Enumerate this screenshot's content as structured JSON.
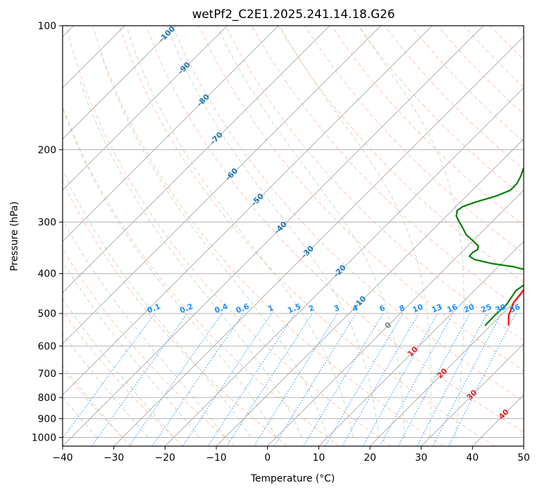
{
  "chart_data": {
    "type": "skew-t",
    "title": "wetPf2_C2E1.2025.241.14.18.G26",
    "xlabel": "Temperature (°C)",
    "ylabel": "Pressure (hPa)",
    "xlim": [
      -40,
      50
    ],
    "ylim": [
      1050,
      100
    ],
    "x_ticks": [
      -40,
      -30,
      -20,
      -10,
      0,
      10,
      20,
      30,
      40,
      50
    ],
    "y_ticks": [
      100,
      200,
      300,
      400,
      500,
      600,
      700,
      800,
      900,
      1000
    ],
    "grid": true,
    "colors": {
      "temperature": "#ff0000",
      "dewpoint": "#008000",
      "isotherm": "#b0b0b0",
      "dry_adiabat": "#ffa07a",
      "moist_adiabat": "#8fbc8f",
      "mixing_ratio": "#1e90ff",
      "isotherm_label": "#1f77b4",
      "mixing_label": "#1e90ff",
      "temp_label": "#d62728",
      "zero_label": "#808080"
    },
    "series": [
      {
        "name": "Temperature",
        "points": [
          [
            23.5,
            535
          ],
          [
            21.5,
            505
          ],
          [
            20,
            470
          ],
          [
            19.5,
            440
          ],
          [
            19.5,
            415
          ],
          [
            20,
            402
          ],
          [
            21.5,
            393
          ],
          [
            23,
            382
          ],
          [
            22.6,
            370
          ],
          [
            21.5,
            355
          ],
          [
            20,
            340
          ],
          [
            18.3,
            325
          ],
          [
            16.2,
            308
          ],
          [
            14.5,
            292
          ],
          [
            13.5,
            280
          ],
          [
            12.5,
            265
          ],
          [
            11.5,
            252
          ],
          [
            10.2,
            237
          ],
          [
            8.9,
            223
          ],
          [
            7.6,
            209
          ],
          [
            6.4,
            195
          ],
          [
            5.5,
            182
          ],
          [
            5,
            170
          ],
          [
            4.8,
            160
          ],
          [
            4.7,
            150
          ],
          [
            4.5,
            140
          ],
          [
            4.4,
            130
          ],
          [
            4.5,
            122
          ],
          [
            5.5,
            113
          ],
          [
            7.3,
            106
          ],
          [
            9,
            100
          ]
        ]
      },
      {
        "name": "Dewpoint",
        "points": [
          [
            18.9,
            535
          ],
          [
            18.8,
            505
          ],
          [
            19,
            475
          ],
          [
            18.5,
            455
          ],
          [
            18.1,
            440
          ],
          [
            18.5,
            428
          ],
          [
            19,
            418
          ],
          [
            18.9,
            408
          ],
          [
            17.5,
            395
          ],
          [
            13,
            385
          ],
          [
            8,
            378
          ],
          [
            4,
            370
          ],
          [
            2.3,
            363
          ],
          [
            2.2,
            355
          ],
          [
            2.6,
            350
          ],
          [
            2.1,
            343
          ],
          [
            0,
            333
          ],
          [
            -2.5,
            322
          ],
          [
            -4.5,
            310
          ],
          [
            -6.3,
            300
          ],
          [
            -8.1,
            290
          ],
          [
            -9,
            281
          ],
          [
            -8.7,
            275
          ],
          [
            -7,
            268
          ],
          [
            -4.2,
            259
          ],
          [
            -2.6,
            251
          ],
          [
            -2.6,
            242
          ],
          [
            -3.3,
            232
          ],
          [
            -4.3,
            222
          ],
          [
            -5,
            213
          ],
          [
            -6.1,
            204
          ],
          [
            -7.3,
            194
          ],
          [
            -8.5,
            186
          ],
          [
            -9.1,
            178
          ],
          [
            -8.8,
            172
          ],
          [
            -8.2,
            166
          ],
          [
            -7.2,
            158
          ],
          [
            -6.2,
            150
          ],
          [
            -5.2,
            141
          ],
          [
            -3.6,
            131
          ],
          [
            -2.4,
            124
          ],
          [
            -1.6,
            118
          ],
          [
            -1.2,
            112
          ],
          [
            -0.3,
            106
          ],
          [
            1,
            100
          ]
        ]
      }
    ],
    "isotherm_labels": [
      "-100",
      "-90",
      "-80",
      "-70",
      "-60",
      "-50",
      "-40",
      "-30",
      "-20",
      "-10",
      "0",
      "10",
      "20",
      "30",
      "40"
    ],
    "mixing_ratio_labels": [
      "0.1",
      "0.2",
      "0.4",
      "0.6",
      "1",
      "1.5",
      "2",
      "3",
      "4",
      "6",
      "8",
      "10",
      "13",
      "16",
      "20",
      "25",
      "30",
      "36"
    ]
  }
}
